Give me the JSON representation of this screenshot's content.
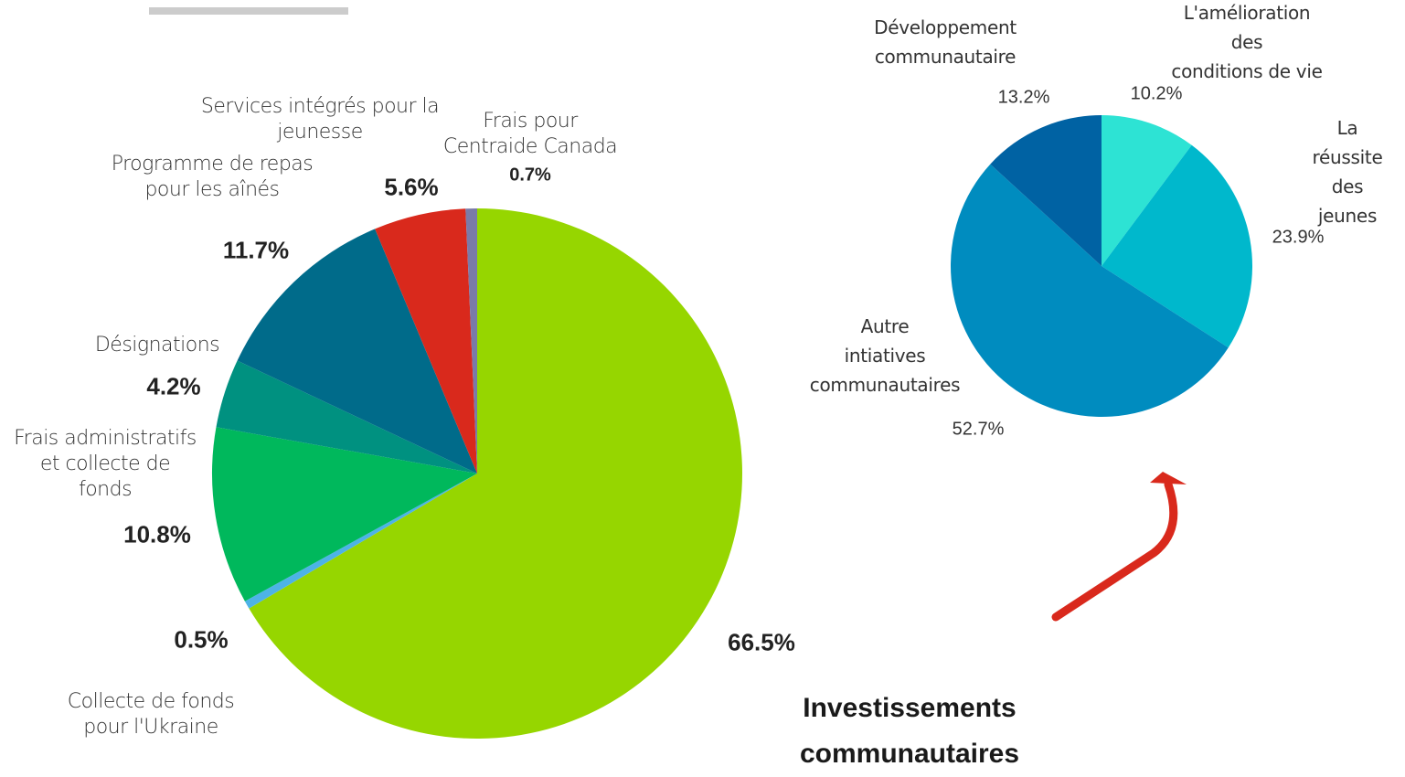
{
  "chart_data": [
    {
      "type": "pie",
      "categories": [
        null,
        "Collecte de fonds\npour l'Ukraine",
        "Frais administratifs\net collecte de\nfonds",
        "Désignations",
        "Programme de repas\npour les aînés",
        "Services intégrés pour la\njeunesse",
        "Frais pour\nCentraide Canada"
      ],
      "values": [
        66.5,
        0.5,
        10.8,
        4.2,
        11.7,
        5.6,
        0.7
      ],
      "value_labels": [
        "66.5%",
        "0.5%",
        "10.8%",
        "4.2%",
        "11.7%",
        "5.6%",
        "0.7%"
      ],
      "colors": [
        "#96d600",
        "#4db3e6",
        "#00b85c",
        "#009180",
        "#006b8a",
        "#d9291c",
        "#7a7aa8"
      ]
    },
    {
      "type": "pie",
      "title": "Investissements communautaires",
      "categories": [
        "L'amélioration des\nconditions de vie",
        "La réussite\ndes jeunes",
        "Autre\nintiatives\ncommunautaires",
        "Développement\ncommunautaire"
      ],
      "values": [
        10.2,
        23.9,
        52.7,
        13.2
      ],
      "value_labels": [
        "10.2%",
        "23.9%",
        "52.7%",
        "13.2%"
      ],
      "colors": [
        "#2de3d4",
        "#00b8cc",
        "#008cbf",
        "#0062a3"
      ]
    }
  ]
}
